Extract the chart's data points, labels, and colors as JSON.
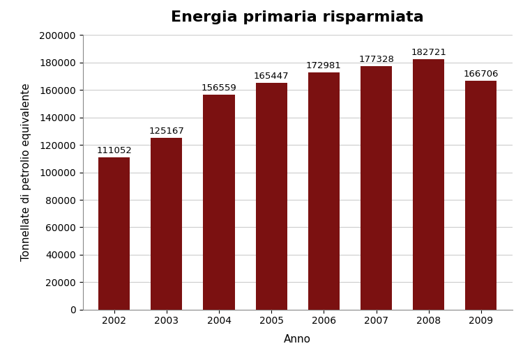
{
  "title": "Energia primaria risparmiata",
  "xlabel": "Anno",
  "ylabel": "Tonnellate di petrolio equivalente",
  "years": [
    2002,
    2003,
    2004,
    2005,
    2006,
    2007,
    2008,
    2009
  ],
  "values": [
    111052,
    125167,
    156559,
    165447,
    172981,
    177328,
    182721,
    166706
  ],
  "bar_color": "#7B1111",
  "ylim": [
    0,
    200000
  ],
  "yticks": [
    0,
    20000,
    40000,
    60000,
    80000,
    100000,
    120000,
    140000,
    160000,
    180000,
    200000
  ],
  "background_color": "#FFFFFF",
  "plot_bg_color": "#FFFFFF",
  "grid_color": "#CCCCCC",
  "title_fontsize": 16,
  "label_fontsize": 11,
  "tick_fontsize": 10,
  "annotation_fontsize": 9.5,
  "bar_width": 0.6,
  "figure_width": 7.5,
  "figure_height": 5.2
}
